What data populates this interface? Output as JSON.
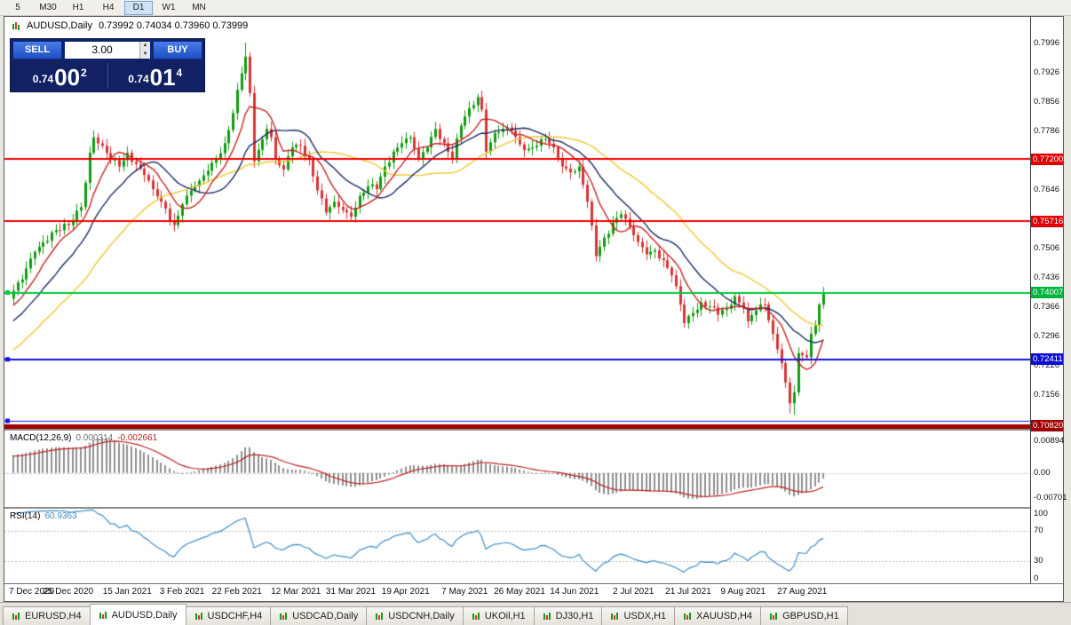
{
  "toolbar": {
    "periods": [
      "5",
      "M30",
      "H1",
      "H4",
      "D1",
      "W1",
      "MN"
    ],
    "active": "D1"
  },
  "header": {
    "symbol": "AUDUSD,Daily",
    "ohlc": "0.73992 0.74034 0.73960 0.73999"
  },
  "trade": {
    "sell_label": "SELL",
    "buy_label": "BUY",
    "volume": "3.00",
    "sell_price": {
      "small": "0.74",
      "big": "00",
      "sup": "2"
    },
    "buy_price": {
      "small": "0.74",
      "big": "01",
      "sup": "4"
    }
  },
  "icons": {
    "spin_up": "▲",
    "spin_down": "▼"
  },
  "indicators": {
    "macd_name": "MACD(12,26,9)",
    "macd_v1": "0.000314",
    "macd_v2": "-0.002661",
    "rsi_name": "RSI(14)",
    "rsi_value": "60.9363"
  },
  "tabs": {
    "items": [
      "EURUSD,H4",
      "AUDUSD,Daily",
      "USDCHF,H4",
      "USDCAD,Daily",
      "USDCNH,Daily",
      "UKOil,H1",
      "DJ30,H1",
      "USDX,H1",
      "XAUUSD,H4",
      "GBPUSD,H1"
    ],
    "active": "AUDUSD,Daily"
  },
  "chart_data": {
    "type": "candlestick",
    "symbol": "AUDUSD",
    "timeframe": "Daily",
    "current_ohlc": {
      "open": 0.73992,
      "high": 0.74034,
      "low": 0.7396,
      "close": 0.73999
    },
    "y_range": [
      0.7075,
      0.806
    ],
    "y_ticks": [
      "0.7996",
      "0.7926",
      "0.7856",
      "0.7786",
      "0.7646",
      "0.7506",
      "0.7436",
      "0.7366",
      "0.7296",
      "0.7226",
      "0.7156"
    ],
    "colors": {
      "candle_up": "#119c11",
      "candle_down": "#d83434",
      "ma_fast": "#cc2222",
      "ma_mid": "#1b2a66",
      "ma_slow": "#f0c832",
      "macd_hist": "#8f8f8f",
      "macd_signal": "#bf2020",
      "rsi": "#3f8cc8"
    },
    "moving_averages": [
      {
        "period": 34,
        "color": "#f0c832"
      },
      {
        "period": 17,
        "color": "#1b2a66"
      },
      {
        "period": 8,
        "color": "#cc2222"
      }
    ],
    "hlines": [
      {
        "price": 0.772,
        "badge": "0.77200",
        "color": "#f00000",
        "badge_color": "#e00000",
        "width": 2
      },
      {
        "price": 0.75716,
        "badge": "0.75716",
        "color": "#f00000",
        "badge_color": "#e00000",
        "width": 2
      },
      {
        "price": 0.74007,
        "badge": "0.74007",
        "color": "#00c83c",
        "badge_color": "#00b43c",
        "width": 2,
        "handles": true
      },
      {
        "price": 0.72411,
        "badge": "0.72411",
        "color": "#1010e0",
        "badge_color": "#0d0dd6",
        "width": 2,
        "handles": true
      },
      {
        "price": 0.7094,
        "color": "#1010e0",
        "width": 1,
        "handles": true
      },
      {
        "price": 0.7082,
        "badge": "0.70820",
        "color": "#a00000",
        "badge_color": "#a00000",
        "width": 5
      }
    ],
    "macd": {
      "fast": 12,
      "slow": 26,
      "signal": 9,
      "range": [
        -0.00955,
        0.0119
      ],
      "ticks": [
        {
          "v": 0.00894,
          "t": "0.00894"
        },
        {
          "v": 0.0,
          "t": "0.00"
        },
        {
          "v": -0.00701,
          "t": "-0.00701"
        }
      ]
    },
    "rsi": {
      "period": 14,
      "range": [
        0,
        100
      ],
      "levels": [
        70,
        30
      ],
      "ticks": [
        {
          "v": 100,
          "t": "100"
        },
        {
          "v": 70,
          "t": "70"
        },
        {
          "v": 30,
          "t": "30"
        },
        {
          "v": 0,
          "t": "0"
        }
      ]
    },
    "x_labels": [
      [
        0,
        "7 Dec 2020"
      ],
      [
        13,
        "25 Dec 2020"
      ],
      [
        27,
        "15 Jan 2021"
      ],
      [
        40,
        "3 Feb 2021"
      ],
      [
        53,
        "22 Feb 2021"
      ],
      [
        67,
        "12 Mar 2021"
      ],
      [
        80,
        "31 Mar 2021"
      ],
      [
        93,
        "19 Apr 2021"
      ],
      [
        107,
        "7 May 2021"
      ],
      [
        120,
        "26 May 2021"
      ],
      [
        133,
        "14 Jun 2021"
      ],
      [
        147,
        "2 Jul 2021"
      ],
      [
        160,
        "21 Jul 2021"
      ],
      [
        173,
        "9 Aug 2021"
      ],
      [
        187,
        "27 Aug 2021"
      ]
    ],
    "candles": {
      "count": 193,
      "anchors": [
        [
          0,
          0.7405
        ],
        [
          2,
          0.7432
        ],
        [
          5,
          0.7498
        ],
        [
          9,
          0.7545
        ],
        [
          13,
          0.7562
        ],
        [
          16,
          0.7605
        ],
        [
          18,
          0.7735
        ],
        [
          19,
          0.7772
        ],
        [
          21,
          0.7752
        ],
        [
          23,
          0.7718
        ],
        [
          25,
          0.7702
        ],
        [
          27,
          0.7735
        ],
        [
          29,
          0.7708
        ],
        [
          31,
          0.7682
        ],
        [
          33,
          0.7648
        ],
        [
          35,
          0.7618
        ],
        [
          38,
          0.7562
        ],
        [
          40,
          0.7612
        ],
        [
          42,
          0.7645
        ],
        [
          44,
          0.7668
        ],
        [
          46,
          0.7692
        ],
        [
          48,
          0.7722
        ],
        [
          50,
          0.7758
        ],
        [
          52,
          0.783
        ],
        [
          54,
          0.7925
        ],
        [
          55,
          0.7965
        ],
        [
          56,
          0.7878
        ],
        [
          57,
          0.7715
        ],
        [
          58,
          0.7742
        ],
        [
          60,
          0.7792
        ],
        [
          61,
          0.7772
        ],
        [
          62,
          0.7722
        ],
        [
          64,
          0.7695
        ],
        [
          66,
          0.7748
        ],
        [
          68,
          0.7752
        ],
        [
          70,
          0.7718
        ],
        [
          72,
          0.7645
        ],
        [
          74,
          0.7592
        ],
        [
          76,
          0.7618
        ],
        [
          78,
          0.7598
        ],
        [
          80,
          0.7582
        ],
        [
          82,
          0.7632
        ],
        [
          84,
          0.7655
        ],
        [
          86,
          0.7648
        ],
        [
          88,
          0.7702
        ],
        [
          90,
          0.7738
        ],
        [
          92,
          0.7758
        ],
        [
          94,
          0.7772
        ],
        [
          96,
          0.7722
        ],
        [
          98,
          0.7748
        ],
        [
          100,
          0.7792
        ],
        [
          102,
          0.7758
        ],
        [
          104,
          0.7722
        ],
        [
          106,
          0.78
        ],
        [
          108,
          0.7842
        ],
        [
          110,
          0.7868
        ],
        [
          111,
          0.7838
        ],
        [
          112,
          0.7738
        ],
        [
          114,
          0.7782
        ],
        [
          116,
          0.7792
        ],
        [
          118,
          0.7788
        ],
        [
          120,
          0.7755
        ],
        [
          122,
          0.7745
        ],
        [
          124,
          0.7752
        ],
        [
          126,
          0.7768
        ],
        [
          128,
          0.7748
        ],
        [
          130,
          0.7702
        ],
        [
          132,
          0.7688
        ],
        [
          134,
          0.7702
        ],
        [
          136,
          0.7618
        ],
        [
          138,
          0.7488
        ],
        [
          140,
          0.7532
        ],
        [
          142,
          0.7568
        ],
        [
          144,
          0.7588
        ],
        [
          146,
          0.7558
        ],
        [
          148,
          0.7522
        ],
        [
          150,
          0.7492
        ],
        [
          152,
          0.7502
        ],
        [
          154,
          0.7478
        ],
        [
          156,
          0.7442
        ],
        [
          158,
          0.7372
        ],
        [
          159,
          0.7328
        ],
        [
          161,
          0.7352
        ],
        [
          163,
          0.7378
        ],
        [
          165,
          0.7368
        ],
        [
          167,
          0.7348
        ],
        [
          169,
          0.7362
        ],
        [
          171,
          0.7392
        ],
        [
          173,
          0.7362
        ],
        [
          174,
          0.7332
        ],
        [
          176,
          0.7358
        ],
        [
          178,
          0.7372
        ],
        [
          180,
          0.7302
        ],
        [
          182,
          0.7232
        ],
        [
          184,
          0.7136
        ],
        [
          185,
          0.7162
        ],
        [
          186,
          0.7256
        ],
        [
          188,
          0.7246
        ],
        [
          189,
          0.7302
        ],
        [
          190,
          0.7322
        ],
        [
          191,
          0.7372
        ],
        [
          192,
          0.74
        ]
      ]
    }
  }
}
